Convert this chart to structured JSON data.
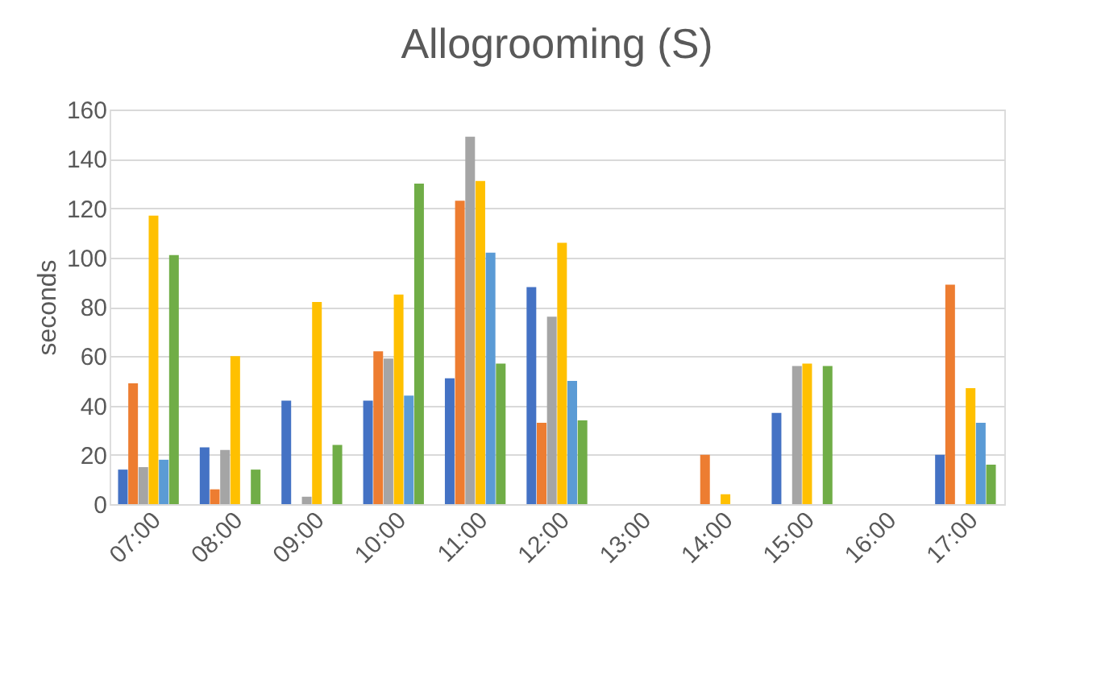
{
  "chart_data": {
    "type": "bar",
    "title": "Allogrooming (S)",
    "ylabel": "seconds",
    "categories": [
      "07:00",
      "08:00",
      "09:00",
      "10:00",
      "11:00",
      "12:00",
      "13:00",
      "14:00",
      "15:00",
      "16:00",
      "17:00"
    ],
    "series": [
      {
        "color": "#4472c4",
        "values": [
          14,
          23,
          42,
          42,
          51,
          88,
          0,
          0,
          37,
          0,
          20
        ]
      },
      {
        "color": "#ed7d31",
        "values": [
          49,
          6,
          0,
          62,
          123,
          33,
          0,
          20,
          0,
          0,
          89
        ]
      },
      {
        "color": "#a5a5a5",
        "values": [
          15,
          22,
          3,
          59,
          149,
          76,
          0,
          0,
          56,
          0,
          0
        ]
      },
      {
        "color": "#ffc000",
        "values": [
          117,
          60,
          82,
          85,
          131,
          106,
          0,
          4,
          57,
          0,
          47
        ]
      },
      {
        "color": "#5b9bd5",
        "values": [
          18,
          0,
          0,
          44,
          102,
          50,
          0,
          0,
          0,
          0,
          33
        ]
      },
      {
        "color": "#70ad47",
        "values": [
          101,
          14,
          24,
          130,
          57,
          34,
          0,
          0,
          56,
          0,
          16
        ]
      }
    ],
    "ylim": [
      0,
      160
    ],
    "yticks": [
      0,
      20,
      40,
      60,
      80,
      100,
      120,
      140,
      160
    ],
    "grid": "y",
    "legend": false
  }
}
